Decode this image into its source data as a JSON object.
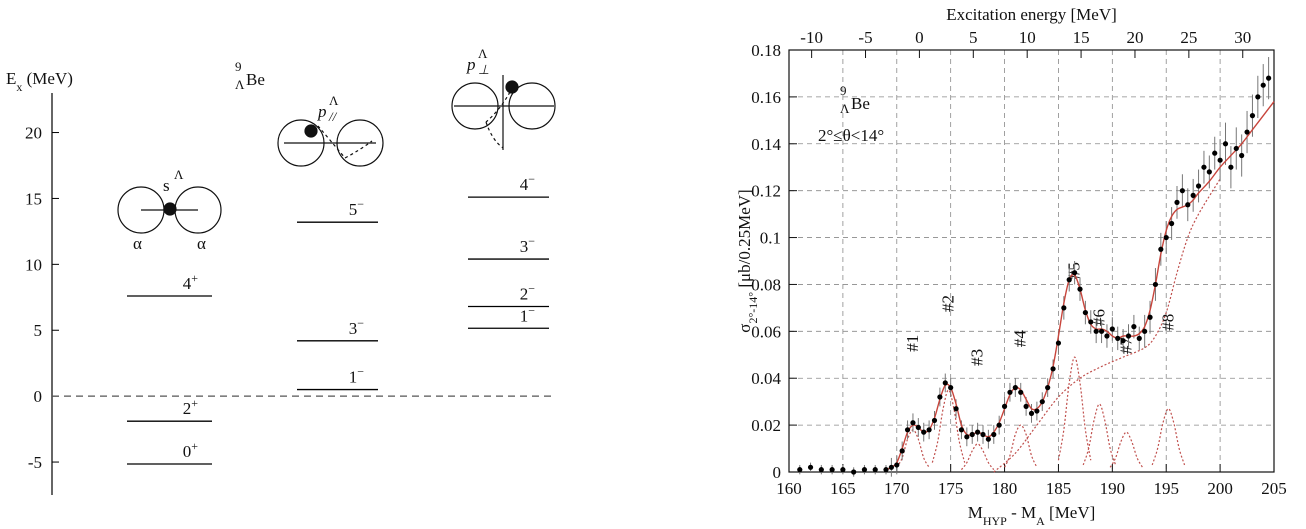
{
  "chart_data": [
    {
      "type": "level-diagram",
      "ylabel": [
        {
          "text": "E"
        },
        {
          "text": "x",
          "sub": true
        },
        {
          "text": " (MeV)"
        }
      ],
      "nucleus": {
        "mass": "9",
        "strange": "Λ",
        "symbol": "Be"
      },
      "ylim": [
        -7.5,
        23
      ],
      "yticks": [
        -5,
        0,
        5,
        10,
        15,
        20
      ],
      "color": "#000000",
      "columns": [
        {
          "label": {
            "base": "s",
            "sup": "Λ"
          },
          "cluster_labels": [
            "α",
            "α"
          ],
          "levels": [
            {
              "value": -5.15,
              "spin": "0",
              "parity": "+"
            },
            {
              "value": -1.9,
              "spin": "2",
              "parity": "+"
            },
            {
              "value": 7.6,
              "spin": "4",
              "parity": "+"
            }
          ]
        },
        {
          "label": {
            "base": "p",
            "sub": "//",
            "sup": "Λ"
          },
          "levels": [
            {
              "value": 0.5,
              "spin": "1",
              "parity": "−"
            },
            {
              "value": 4.2,
              "spin": "3",
              "parity": "−"
            },
            {
              "value": 13.2,
              "spin": "5",
              "parity": "−"
            }
          ]
        },
        {
          "label": {
            "base": "p",
            "sub": "⊥",
            "sup": "Λ"
          },
          "levels": [
            {
              "value": 5.15,
              "spin": "1",
              "parity": "−"
            },
            {
              "value": 6.8,
              "spin": "2",
              "parity": "−"
            },
            {
              "value": 10.4,
              "spin": "3",
              "parity": "−"
            },
            {
              "value": 15.1,
              "spin": "4",
              "parity": "−"
            }
          ]
        }
      ]
    },
    {
      "type": "scatter",
      "xlabel": [
        {
          "text": "M"
        },
        {
          "text": "HYP",
          "sub": true
        },
        {
          "text": " - M"
        },
        {
          "text": "A",
          "sub": true
        },
        {
          "text": " [MeV]"
        }
      ],
      "x2label": "Excitation energy [MeV]",
      "ylabel": [
        {
          "text": "σ"
        },
        {
          "text": "2°-14°",
          "sub": true
        },
        {
          "text": " [μb/0.25MeV]"
        }
      ],
      "nucleus": {
        "mass": "9",
        "strange": "Λ",
        "symbol": "Be"
      },
      "angle_range": "2°≤θ<14°",
      "xlim": [
        160,
        205
      ],
      "xticks": [
        160,
        165,
        170,
        175,
        180,
        185,
        190,
        195,
        200,
        205
      ],
      "x2lim": [
        -12.1,
        32.9
      ],
      "x2ticks": [
        -10,
        -5,
        0,
        5,
        10,
        15,
        20,
        25,
        30
      ],
      "ylim": [
        0,
        0.18
      ],
      "yticks": [
        0,
        0.02,
        0.04,
        0.06,
        0.08,
        0.1,
        0.12,
        0.14,
        0.16,
        0.18
      ],
      "grid": true,
      "color": "#000000",
      "error_color": "#777777",
      "x": [
        161,
        162,
        163,
        164,
        165,
        166,
        167,
        168,
        169,
        169.5,
        170,
        170.5,
        171,
        171.5,
        172,
        172.5,
        173,
        173.5,
        174,
        174.5,
        175,
        175.5,
        176,
        176.5,
        177,
        177.5,
        178,
        178.5,
        179,
        179.5,
        180,
        180.5,
        181,
        181.5,
        182,
        182.5,
        183,
        183.5,
        184,
        184.5,
        185,
        185.5,
        186,
        186.5,
        187,
        187.5,
        188,
        188.5,
        189,
        189.5,
        190,
        190.5,
        191,
        191.5,
        192,
        192.5,
        193,
        193.5,
        194,
        194.5,
        195,
        195.5,
        196,
        196.5,
        197,
        197.5,
        198,
        198.5,
        199,
        199.5,
        200,
        200.5,
        201,
        201.5,
        202,
        202.5,
        203,
        203.5,
        204,
        204.5
      ],
      "values": [
        0.001,
        0.002,
        0.001,
        0.001,
        0.001,
        0.0,
        0.001,
        0.001,
        0.001,
        0.002,
        0.003,
        0.009,
        0.018,
        0.021,
        0.019,
        0.017,
        0.018,
        0.022,
        0.032,
        0.038,
        0.036,
        0.027,
        0.018,
        0.015,
        0.016,
        0.017,
        0.016,
        0.014,
        0.016,
        0.02,
        0.028,
        0.034,
        0.036,
        0.034,
        0.028,
        0.025,
        0.026,
        0.03,
        0.036,
        0.044,
        0.055,
        0.07,
        0.082,
        0.085,
        0.078,
        0.068,
        0.064,
        0.06,
        0.06,
        0.058,
        0.061,
        0.057,
        0.056,
        0.058,
        0.062,
        0.057,
        0.06,
        0.066,
        0.08,
        0.095,
        0.1,
        0.106,
        0.115,
        0.12,
        0.114,
        0.118,
        0.122,
        0.13,
        0.128,
        0.136,
        0.133,
        0.14,
        0.13,
        0.138,
        0.135,
        0.145,
        0.152,
        0.16,
        0.165,
        0.168
      ],
      "errors": [
        0.002,
        0.002,
        0.002,
        0.002,
        0.002,
        0.002,
        0.002,
        0.002,
        0.002,
        0.004,
        0.004,
        0.004,
        0.004,
        0.004,
        0.004,
        0.004,
        0.004,
        0.004,
        0.004,
        0.004,
        0.004,
        0.004,
        0.004,
        0.004,
        0.004,
        0.004,
        0.004,
        0.004,
        0.004,
        0.004,
        0.004,
        0.004,
        0.004,
        0.004,
        0.004,
        0.004,
        0.004,
        0.004,
        0.004,
        0.004,
        0.005,
        0.005,
        0.005,
        0.005,
        0.005,
        0.005,
        0.005,
        0.005,
        0.005,
        0.005,
        0.005,
        0.005,
        0.005,
        0.005,
        0.005,
        0.005,
        0.007,
        0.007,
        0.007,
        0.007,
        0.007,
        0.007,
        0.007,
        0.007,
        0.007,
        0.007,
        0.007,
        0.007,
        0.007,
        0.007,
        0.009,
        0.009,
        0.009,
        0.009,
        0.009,
        0.009,
        0.009,
        0.009,
        0.009,
        0.009
      ],
      "fit": {
        "color": "#c8453c",
        "x": [
          169,
          169.5,
          170,
          170.5,
          171,
          171.5,
          172,
          172.5,
          173,
          173.5,
          174,
          174.5,
          175,
          175.5,
          176,
          176.5,
          177,
          177.5,
          178,
          178.5,
          179,
          179.5,
          180,
          180.5,
          181,
          181.5,
          182,
          182.5,
          183,
          183.5,
          184,
          184.5,
          185,
          185.5,
          186,
          186.5,
          187,
          187.5,
          188,
          188.5,
          189,
          189.5,
          190,
          190.5,
          191,
          191.5,
          192,
          192.5,
          193,
          193.5,
          194,
          194.5,
          195,
          195.5,
          196,
          196.5,
          197,
          197.5,
          198,
          199,
          200,
          201,
          202,
          203,
          204,
          205
        ],
        "values": [
          0.001,
          0.002,
          0.004,
          0.01,
          0.017,
          0.02,
          0.019,
          0.017,
          0.018,
          0.023,
          0.031,
          0.037,
          0.036,
          0.029,
          0.02,
          0.016,
          0.016,
          0.017,
          0.016,
          0.015,
          0.017,
          0.021,
          0.027,
          0.033,
          0.036,
          0.035,
          0.031,
          0.027,
          0.027,
          0.03,
          0.036,
          0.045,
          0.058,
          0.072,
          0.082,
          0.084,
          0.078,
          0.069,
          0.063,
          0.061,
          0.061,
          0.06,
          0.058,
          0.057,
          0.058,
          0.058,
          0.058,
          0.059,
          0.062,
          0.069,
          0.08,
          0.093,
          0.103,
          0.109,
          0.112,
          0.113,
          0.114,
          0.116,
          0.119,
          0.124,
          0.13,
          0.135,
          0.14,
          0.146,
          0.152,
          0.158
        ]
      },
      "component_color": "#c0504d",
      "components": [
        {
          "label": "#1",
          "x": [
            170,
            170.5,
            171,
            171.5,
            172,
            172.5,
            173
          ],
          "values": [
            0.002,
            0.006,
            0.014,
            0.018,
            0.014,
            0.006,
            0.002
          ]
        },
        {
          "label": "#2",
          "x": [
            173.3,
            173.8,
            174.3,
            174.8,
            175.3,
            175.8,
            176.3
          ],
          "values": [
            0.004,
            0.013,
            0.027,
            0.035,
            0.027,
            0.013,
            0.004
          ]
        },
        {
          "label": "#3",
          "x": [
            176,
            176.5,
            177,
            177.5,
            178,
            178.5,
            179
          ],
          "values": [
            0.001,
            0.004,
            0.009,
            0.012,
            0.009,
            0.004,
            0.001
          ]
        },
        {
          "label": "#4",
          "x": [
            180,
            180.5,
            181,
            181.5,
            182,
            182.5,
            183
          ],
          "values": [
            0.002,
            0.007,
            0.016,
            0.02,
            0.016,
            0.007,
            0.002
          ]
        },
        {
          "label": "#5",
          "x": [
            185,
            185.5,
            186,
            186.5,
            187,
            187.5,
            188
          ],
          "values": [
            0.005,
            0.018,
            0.038,
            0.049,
            0.038,
            0.018,
            0.005
          ]
        },
        {
          "label": "#6",
          "x": [
            187.3,
            187.8,
            188.3,
            188.8,
            189.3,
            189.8,
            190.3
          ],
          "values": [
            0.003,
            0.01,
            0.022,
            0.029,
            0.022,
            0.01,
            0.003
          ]
        },
        {
          "label": "#7",
          "x": [
            189.8,
            190.3,
            190.8,
            191.3,
            191.8,
            192.3,
            192.8
          ],
          "values": [
            0.002,
            0.006,
            0.013,
            0.017,
            0.013,
            0.006,
            0.002
          ]
        },
        {
          "label": "#8",
          "x": [
            193.7,
            194.2,
            194.7,
            195.2,
            195.7,
            196.2,
            196.7
          ],
          "values": [
            0.003,
            0.01,
            0.021,
            0.027,
            0.021,
            0.01,
            0.003
          ]
        }
      ],
      "background": {
        "x": [
          179,
          181,
          183,
          185,
          187,
          189,
          191,
          193,
          194,
          195,
          196,
          197,
          198,
          200
        ],
        "values": [
          0.0,
          0.008,
          0.02,
          0.032,
          0.04,
          0.045,
          0.049,
          0.053,
          0.058,
          0.068,
          0.085,
          0.1,
          0.11,
          0.125
        ]
      }
    }
  ]
}
